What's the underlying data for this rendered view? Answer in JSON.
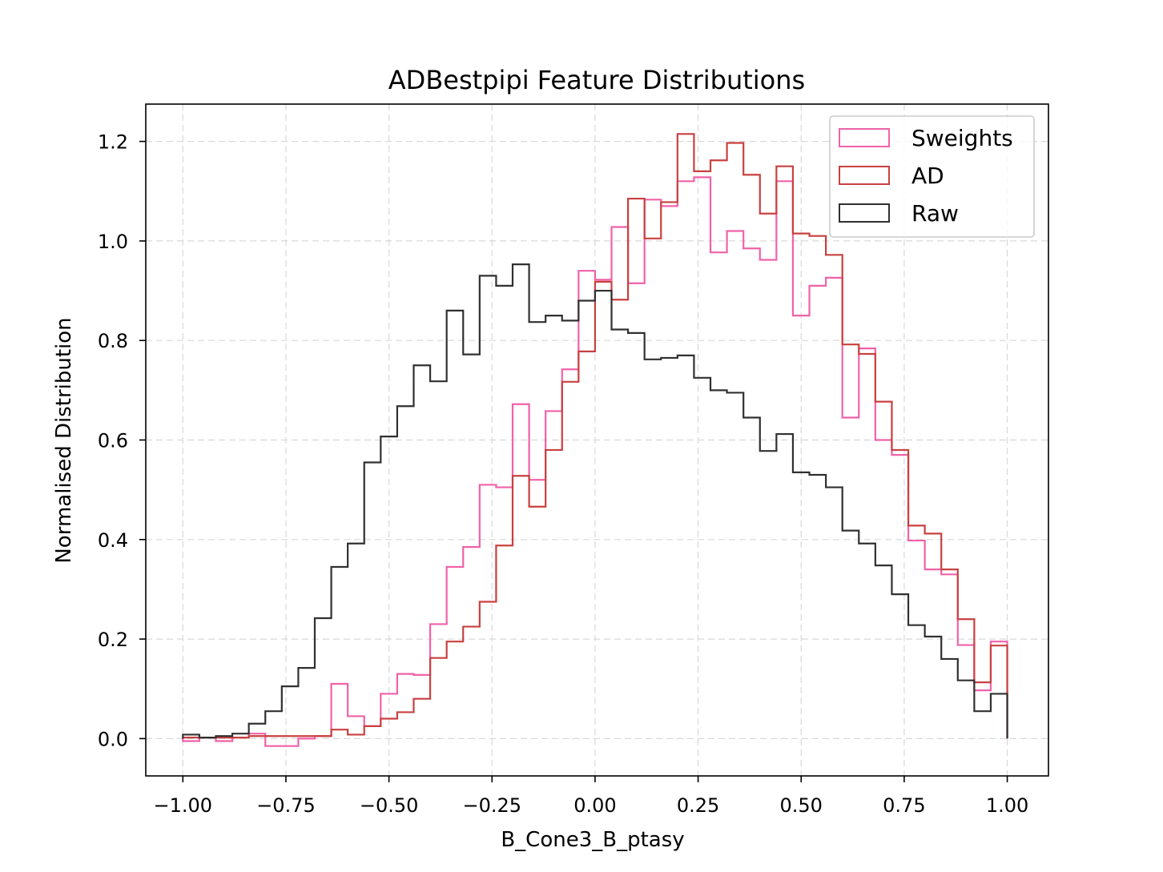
{
  "chart_data": {
    "type": "histogram-step",
    "title": "ADBestpipi Feature Distributions",
    "xlabel": "B_Cone3_B_ptasy",
    "ylabel": "Normalised Distribution",
    "xlim": [
      -1.09,
      1.1
    ],
    "ylim": [
      -0.075,
      1.275
    ],
    "xticks": [
      -1.0,
      -0.75,
      -0.5,
      -0.25,
      0.0,
      0.25,
      0.5,
      0.75,
      1.0
    ],
    "xtick_labels": [
      "−1.00",
      "−0.75",
      "−0.50",
      "−0.25",
      "0.00",
      "0.25",
      "0.50",
      "0.75",
      "1.00"
    ],
    "yticks": [
      0.0,
      0.2,
      0.4,
      0.6,
      0.8,
      1.0,
      1.2
    ],
    "ytick_labels": [
      "0.0",
      "0.2",
      "0.4",
      "0.6",
      "0.8",
      "1.0",
      "1.2"
    ],
    "grid": true,
    "legend_position": "top-right",
    "bin_edges": [
      -1.0,
      -0.96,
      -0.92,
      -0.88,
      -0.84,
      -0.8,
      -0.76,
      -0.72,
      -0.68,
      -0.64,
      -0.6,
      -0.56,
      -0.52,
      -0.48,
      -0.44,
      -0.4,
      -0.36,
      -0.32,
      -0.28,
      -0.24,
      -0.2,
      -0.16,
      -0.12,
      -0.08,
      -0.04,
      0.0,
      0.04,
      0.08,
      0.12,
      0.16,
      0.2,
      0.24,
      0.28,
      0.32,
      0.36,
      0.4,
      0.44,
      0.48,
      0.52,
      0.56,
      0.6,
      0.64,
      0.68,
      0.72,
      0.76,
      0.8,
      0.84,
      0.88,
      0.92,
      0.96,
      1.0
    ],
    "series": [
      {
        "name": "Sweights",
        "color": "#f062a8",
        "values": [
          -0.005,
          0.002,
          -0.005,
          0.002,
          0.01,
          -0.015,
          -0.015,
          0.0,
          0.005,
          0.11,
          0.045,
          0.025,
          0.09,
          0.13,
          0.128,
          0.23,
          0.345,
          0.385,
          0.51,
          0.505,
          0.672,
          0.52,
          0.658,
          0.742,
          0.94,
          0.922,
          1.028,
          0.915,
          1.083,
          1.07,
          1.12,
          1.128,
          0.977,
          1.02,
          0.985,
          0.962,
          1.12,
          0.85,
          0.91,
          0.926,
          0.645,
          0.784,
          0.6,
          0.57,
          0.398,
          0.34,
          0.33,
          0.188,
          0.097,
          0.195
        ]
      },
      {
        "name": "AD",
        "color": "#c94040",
        "values": [
          0.002,
          0.002,
          0.002,
          0.002,
          0.005,
          0.005,
          0.005,
          0.005,
          0.005,
          0.018,
          0.008,
          0.025,
          0.04,
          0.053,
          0.08,
          0.162,
          0.195,
          0.225,
          0.275,
          0.388,
          0.528,
          0.466,
          0.58,
          0.717,
          0.778,
          0.918,
          0.882,
          1.085,
          1.005,
          1.078,
          1.215,
          1.14,
          1.162,
          1.197,
          1.133,
          1.055,
          1.15,
          1.015,
          1.01,
          0.972,
          0.792,
          0.773,
          0.677,
          0.58,
          0.428,
          0.412,
          0.34,
          0.24,
          0.113,
          0.187
        ]
      },
      {
        "name": "Raw",
        "color": "#303030",
        "values": [
          0.008,
          0.002,
          0.005,
          0.01,
          0.03,
          0.055,
          0.105,
          0.142,
          0.242,
          0.345,
          0.392,
          0.555,
          0.607,
          0.668,
          0.75,
          0.718,
          0.86,
          0.772,
          0.93,
          0.91,
          0.953,
          0.837,
          0.85,
          0.84,
          0.88,
          0.9,
          0.822,
          0.815,
          0.762,
          0.765,
          0.77,
          0.725,
          0.7,
          0.695,
          0.645,
          0.578,
          0.612,
          0.535,
          0.53,
          0.505,
          0.418,
          0.392,
          0.348,
          0.29,
          0.228,
          0.205,
          0.16,
          0.117,
          0.055,
          0.09
        ]
      }
    ]
  }
}
